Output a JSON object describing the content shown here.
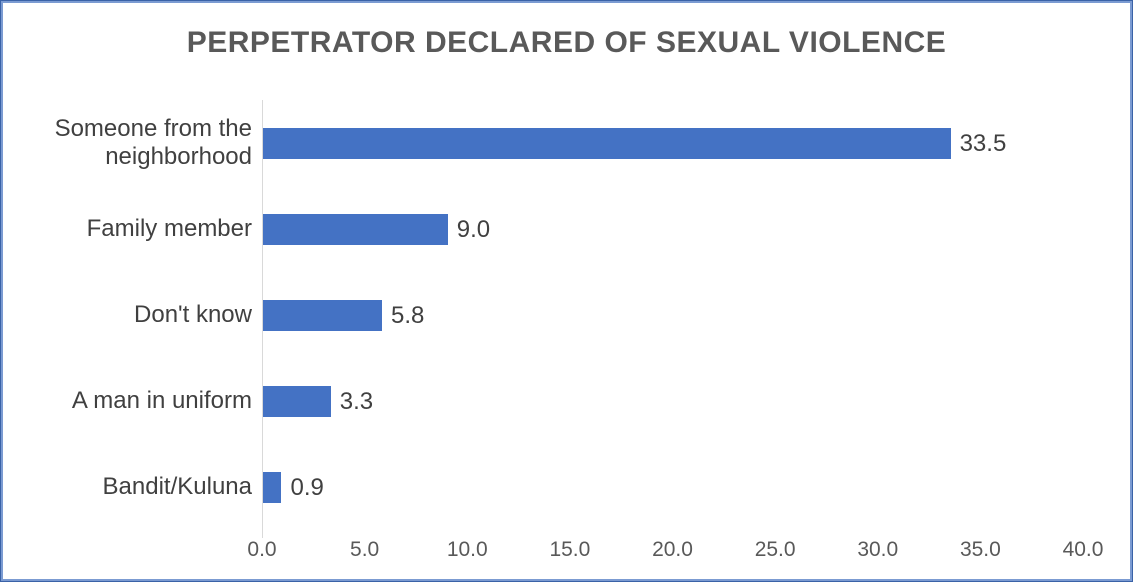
{
  "chart_data": {
    "type": "bar",
    "orientation": "horizontal",
    "title": "PERPETRATOR DECLARED OF SEXUAL VIOLENCE",
    "categories": [
      "Someone from the neighborhood",
      "Family member",
      "Don't know",
      "A man in uniform",
      "Bandit/Kuluna"
    ],
    "values": [
      33.5,
      9.0,
      5.8,
      3.3,
      0.9
    ],
    "data_labels": [
      "33.5",
      "9.0",
      "5.8",
      "3.3",
      "0.9"
    ],
    "xlabel": "",
    "ylabel": "",
    "xlim": [
      0,
      40
    ],
    "xticks": [
      0,
      5,
      10,
      15,
      20,
      25,
      30,
      35,
      40
    ],
    "xtick_labels": [
      "0.0",
      "5.0",
      "10.0",
      "15.0",
      "20.0",
      "25.0",
      "30.0",
      "35.0",
      "40.0"
    ],
    "grid": false,
    "legend": false,
    "data_labels_position": "outside-end",
    "colors": {
      "bar": "#4472C4",
      "axis_line": "#d9d9d9",
      "title": "#595959",
      "category_label": "#404040",
      "value_label": "#404040",
      "tick_label": "#595959",
      "frame_border": "#4472C4",
      "background": "#ffffff"
    }
  }
}
